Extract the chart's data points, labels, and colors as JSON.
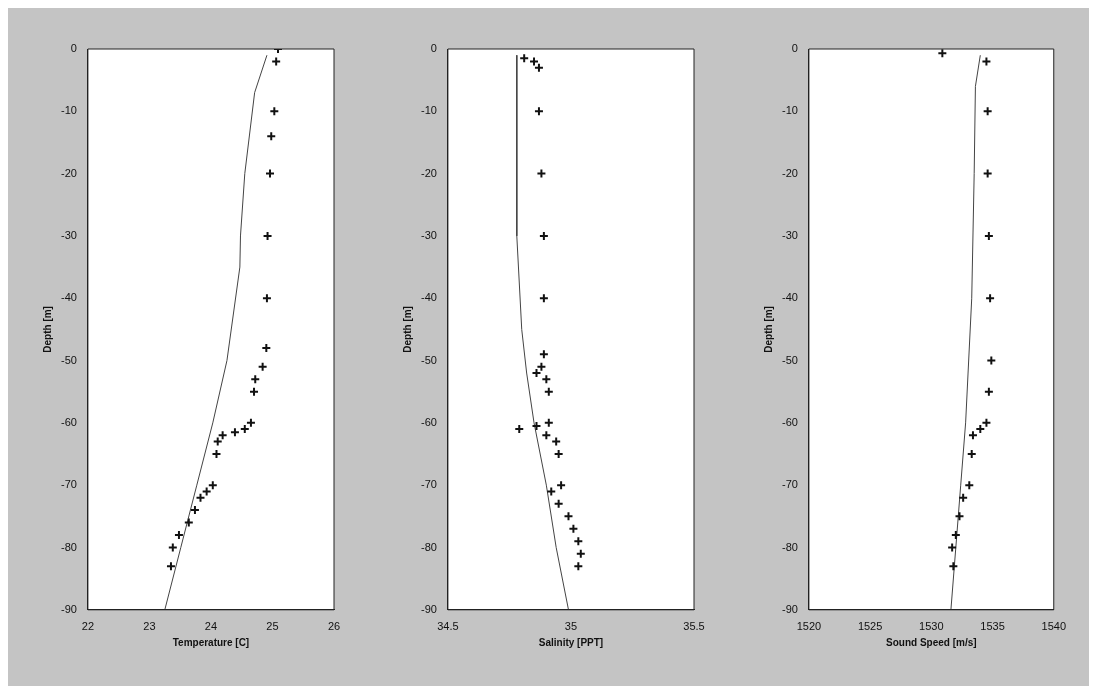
{
  "chart_data": [
    {
      "type": "scatter",
      "xlabel": "Temperature [C]",
      "ylabel": "Depth [m]",
      "xlim": [
        22,
        26
      ],
      "xticks": [
        22,
        23,
        24,
        25,
        26
      ],
      "ylim": [
        -90,
        0
      ],
      "yticks": [
        0,
        -10,
        -20,
        -30,
        -40,
        -50,
        -60,
        -70,
        -80,
        -90
      ],
      "series": [
        {
          "type": "scatter",
          "marker": "cross",
          "color": "#111111",
          "x": [
            25.09,
            25.06,
            25.03,
            24.98,
            24.96,
            24.92,
            24.91,
            24.9,
            24.84,
            24.72,
            24.7,
            24.65,
            24.55,
            24.39,
            24.19,
            24.11,
            24.09,
            24.03,
            23.93,
            23.83,
            23.74,
            23.64,
            23.48,
            23.38,
            23.35
          ],
          "values": [
            0,
            -2,
            -10,
            -14,
            -20,
            -30,
            -40,
            -48,
            -51,
            -53,
            -55,
            -60,
            -61,
            -61.5,
            -62,
            -63,
            -65,
            -70,
            -71,
            -72,
            -74,
            -76,
            -78,
            -80,
            -83
          ]
        },
        {
          "type": "line",
          "marker": "none",
          "color": "#444444",
          "x": [
            24.91,
            24.71,
            24.55,
            24.48,
            24.47,
            24.26,
            24.03,
            23.77,
            23.51,
            23.25
          ],
          "values": [
            -1,
            -7,
            -20,
            -30,
            -35,
            -50,
            -60,
            -70,
            -80,
            -90
          ]
        }
      ]
    },
    {
      "type": "scatter",
      "xlabel": "Salinity [PPT]",
      "ylabel": "Depth [m]",
      "xlim": [
        34.5,
        35.5
      ],
      "xticks": [
        34.5,
        35,
        35.5
      ],
      "ylim": [
        -90,
        0
      ],
      "yticks": [
        0,
        -10,
        -20,
        -30,
        -40,
        -50,
        -60,
        -70,
        -80,
        -90
      ],
      "series": [
        {
          "type": "scatter",
          "marker": "cross",
          "color": "#111111",
          "x": [
            34.81,
            34.85,
            34.87,
            34.87,
            34.88,
            34.89,
            34.89,
            34.89,
            34.88,
            34.86,
            34.9,
            34.91,
            34.91,
            34.86,
            34.79,
            34.9,
            34.94,
            34.95,
            34.96,
            34.92,
            34.95,
            34.99,
            35.01,
            35.03,
            35.04,
            35.03
          ],
          "values": [
            -1.5,
            -2,
            -3,
            -10,
            -20,
            -30,
            -40,
            -49,
            -51,
            -52,
            -53,
            -55,
            -60,
            -60.5,
            -61,
            -62,
            -63,
            -65,
            -70,
            -71,
            -73,
            -75,
            -77,
            -79,
            -81,
            -83
          ]
        },
        {
          "type": "line",
          "marker": "none",
          "color": "#444444",
          "x": [
            34.78,
            34.78,
            34.8,
            34.82,
            34.85,
            34.9,
            34.94,
            34.99
          ],
          "values": [
            -1,
            -30,
            -45,
            -52,
            -60,
            -70,
            -80,
            -90
          ]
        }
      ]
    },
    {
      "type": "scatter",
      "xlabel": "Sound Speed [m/s]",
      "ylabel": "Depth [m]",
      "xlim": [
        1520,
        1540
      ],
      "xticks": [
        1520,
        1525,
        1530,
        1535,
        1540
      ],
      "ylim": [
        -90,
        0
      ],
      "yticks": [
        0,
        -10,
        -20,
        -30,
        -40,
        -50,
        -60,
        -70,
        -80,
        -90
      ],
      "series": [
        {
          "type": "scatter",
          "marker": "cross",
          "color": "#111111",
          "x": [
            1530.9,
            1534.5,
            1534.6,
            1534.6,
            1534.7,
            1534.8,
            1534.9,
            1534.7,
            1534.5,
            1534.0,
            1533.4,
            1533.3,
            1533.1,
            1532.6,
            1532.3,
            1532.0,
            1531.7,
            1531.8
          ],
          "values": [
            -0.7,
            -2,
            -10,
            -20,
            -30,
            -40,
            -50,
            -55,
            -60,
            -61,
            -62,
            -65,
            -70,
            -72,
            -75,
            -78,
            -80,
            -83
          ]
        },
        {
          "type": "line",
          "marker": "none",
          "color": "#444444",
          "x": [
            1534.0,
            1533.6,
            1533.5,
            1533.3,
            1532.8,
            1532.4,
            1532.0,
            1531.6
          ],
          "values": [
            -1,
            -6,
            -20,
            -40,
            -60,
            -70,
            -80,
            -90
          ]
        }
      ]
    }
  ]
}
